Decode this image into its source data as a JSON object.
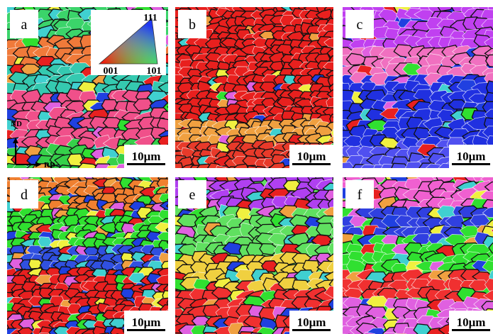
{
  "panels": [
    {
      "label": "a",
      "scale_bar": "10μm"
    },
    {
      "label": "b",
      "scale_bar": "10μm"
    },
    {
      "label": "c",
      "scale_bar": "10μm"
    },
    {
      "label": "d",
      "scale_bar": "10μm"
    },
    {
      "label": "e",
      "scale_bar": "10μm"
    },
    {
      "label": "f",
      "scale_bar": "10μm"
    }
  ],
  "inset": {
    "top": "111",
    "bottom_left": "001",
    "bottom_right": "101"
  },
  "axes": {
    "vertical": "ND",
    "horizontal": "RD"
  }
}
